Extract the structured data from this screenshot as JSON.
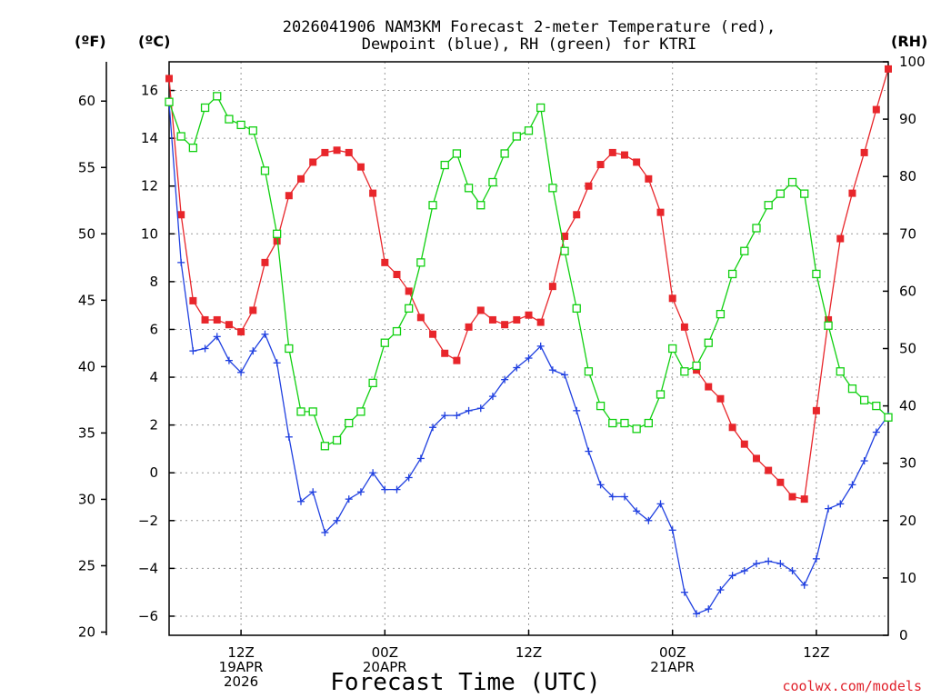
{
  "chart_data": {
    "type": "line",
    "title_line1": "2026041906 NAM3KM Forecast 2-meter Temperature (red),",
    "title_line2": "Dewpoint (blue), RH (green) for KTRI",
    "xlabel": "Forecast Time (UTC)",
    "credit": "coolwx.com/models",
    "units": {
      "fahrenheit": "(ºF)",
      "celsius": "(ºC)",
      "rh": "(RH)"
    },
    "x_range_hours": [
      6,
      66
    ],
    "celsius_range": [
      -6.8,
      17.2
    ],
    "rh_range": [
      0,
      100
    ],
    "grid": true,
    "celsius_ticks": [
      "−6",
      "−4",
      "−2",
      "0",
      "2",
      "4",
      "6",
      "8",
      "10",
      "12",
      "14",
      "16"
    ],
    "fahrenheit_ticks": [
      "20",
      "25",
      "30",
      "35",
      "40",
      "45",
      "50",
      "55",
      "60"
    ],
    "rh_ticks": [
      "0",
      "10",
      "20",
      "30",
      "40",
      "50",
      "60",
      "70",
      "80",
      "90",
      "100"
    ],
    "x_ticks": [
      {
        "hour": 12,
        "lines": [
          "12Z",
          "19APR",
          "2026"
        ]
      },
      {
        "hour": 24,
        "lines": [
          "00Z",
          "20APR"
        ]
      },
      {
        "hour": 36,
        "lines": [
          "12Z"
        ]
      },
      {
        "hour": 48,
        "lines": [
          "00Z",
          "21APR"
        ]
      },
      {
        "hour": 60,
        "lines": [
          "12Z"
        ]
      }
    ],
    "x_hours": [
      6,
      7,
      8,
      9,
      10,
      11,
      12,
      13,
      14,
      15,
      16,
      17,
      18,
      19,
      20,
      21,
      22,
      23,
      24,
      25,
      26,
      27,
      28,
      29,
      30,
      31,
      32,
      33,
      34,
      35,
      36,
      37,
      38,
      39,
      40,
      41,
      42,
      43,
      44,
      45,
      46,
      47,
      48,
      49,
      50,
      51,
      52,
      53,
      54,
      55,
      56,
      57,
      58,
      59,
      60,
      61,
      62,
      63,
      64,
      65,
      66
    ],
    "series": [
      {
        "name": "Temperature",
        "color": "#e8262b",
        "marker": "filled-square",
        "units": "C",
        "values": [
          16.5,
          10.8,
          7.2,
          6.4,
          6.4,
          6.2,
          5.9,
          6.8,
          8.8,
          9.7,
          11.6,
          12.3,
          13.0,
          13.4,
          13.5,
          13.4,
          12.8,
          11.7,
          8.8,
          8.3,
          7.6,
          6.5,
          5.8,
          5.0,
          4.7,
          6.1,
          6.8,
          6.4,
          6.2,
          6.4,
          6.6,
          6.3,
          7.8,
          9.9,
          10.8,
          12.0,
          12.9,
          13.4,
          13.3,
          13.0,
          12.3,
          10.9,
          7.3,
          6.1,
          4.3,
          3.6,
          3.1,
          1.9,
          1.2,
          0.6,
          0.1,
          -0.4,
          -1.0,
          -1.1,
          2.6,
          6.4,
          9.8,
          11.7,
          13.4,
          15.2,
          16.9
        ]
      },
      {
        "name": "Dewpoint",
        "color": "#2040e0",
        "marker": "plus",
        "units": "C",
        "values": [
          15.5,
          8.8,
          5.1,
          5.2,
          5.7,
          4.7,
          4.2,
          5.1,
          5.8,
          4.6,
          1.5,
          -1.2,
          -0.8,
          -2.5,
          -2.0,
          -1.1,
          -0.8,
          0.0,
          -0.7,
          -0.7,
          -0.2,
          0.6,
          1.9,
          2.4,
          2.4,
          2.6,
          2.7,
          3.2,
          3.9,
          4.4,
          4.8,
          5.3,
          4.3,
          4.1,
          2.6,
          0.9,
          -0.5,
          -1.0,
          -1.0,
          -1.6,
          -2.0,
          -1.3,
          -2.4,
          -5.0,
          -5.9,
          -5.7,
          -4.9,
          -4.3,
          -4.1,
          -3.8,
          -3.7,
          -3.8,
          -4.1,
          -4.7,
          -3.6,
          -1.5,
          -1.3,
          -0.5,
          0.5,
          1.7,
          2.4
        ]
      },
      {
        "name": "RH",
        "color": "#10d010",
        "marker": "open-square",
        "units": "%",
        "values": [
          93,
          87,
          85,
          92,
          94,
          90,
          89,
          88,
          81,
          70,
          50,
          39,
          39,
          33,
          34,
          37,
          39,
          44,
          51,
          53,
          57,
          65,
          75,
          82,
          84,
          78,
          75,
          79,
          84,
          87,
          88,
          92,
          78,
          67,
          57,
          46,
          40,
          37,
          37,
          36,
          37,
          42,
          50,
          46,
          47,
          51,
          56,
          63,
          67,
          71,
          75,
          77,
          79,
          77,
          63,
          54,
          46,
          43,
          41,
          40,
          38
        ]
      }
    ]
  }
}
